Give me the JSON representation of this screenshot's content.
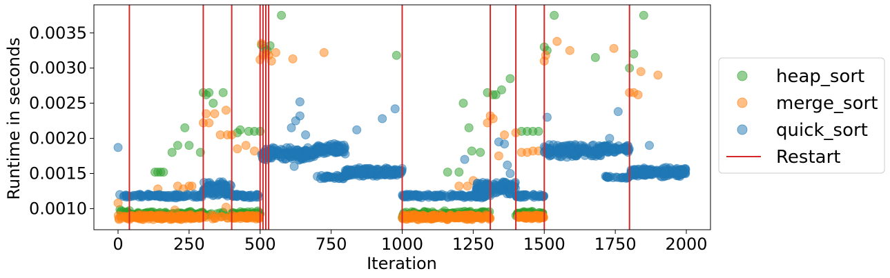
{
  "chart_data": {
    "type": "scatter",
    "xlabel": "Iteration",
    "ylabel": "Runtime in seconds",
    "xlim": [
      -85,
      2085
    ],
    "ylim": [
      0.0007,
      0.0039
    ],
    "xticks": [
      0,
      250,
      500,
      750,
      1000,
      1250,
      1500,
      1750,
      2000
    ],
    "xtick_labels": [
      "0",
      "250",
      "500",
      "750",
      "1000",
      "1250",
      "1500",
      "1750",
      "2000"
    ],
    "yticks": [
      0.001,
      0.0015,
      0.002,
      0.0025,
      0.003,
      0.0035
    ],
    "ytick_labels": [
      "0.0010",
      "0.0015",
      "0.0020",
      "0.0025",
      "0.0030",
      "0.0035"
    ],
    "grid": false,
    "legend_position": "outside-right",
    "restart_label": "Restart",
    "restart_color": "#d62728",
    "restarts": [
      40,
      300,
      400,
      500,
      510,
      520,
      530,
      1000,
      1310,
      1400,
      1500,
      1800
    ],
    "series": [
      {
        "name": "heap_sort",
        "color": "#2ca02c",
        "segments": [
          {
            "x": [
              0,
              40
            ],
            "base": 0.00095,
            "spread": 6e-05,
            "count": 10
          },
          {
            "x": [
              40,
              300
            ],
            "base": 0.00092,
            "spread": 5e-05,
            "count": 110
          },
          {
            "x": [
              300,
              400
            ],
            "base": 0.00093,
            "spread": 4e-05,
            "count": 10
          },
          {
            "x": [
              400,
              500
            ],
            "base": 0.00092,
            "spread": 5e-05,
            "count": 60
          },
          {
            "x": [
              1000,
              1310
            ],
            "base": 0.00092,
            "spread": 5e-05,
            "count": 130
          },
          {
            "x": [
              1400,
              1500
            ],
            "base": 0.00092,
            "spread": 5e-05,
            "count": 60
          }
        ],
        "outliers": [
          [
            130,
            0.00152
          ],
          [
            140,
            0.00152
          ],
          [
            150,
            0.00152
          ],
          [
            160,
            0.00152
          ],
          [
            190,
            0.0018
          ],
          [
            210,
            0.0019
          ],
          [
            235,
            0.00215
          ],
          [
            250,
            0.0019
          ],
          [
            290,
            0.0018
          ],
          [
            300,
            0.00265
          ],
          [
            310,
            0.00262
          ],
          [
            320,
            0.00265
          ],
          [
            335,
            0.0025
          ],
          [
            370,
            0.00265
          ],
          [
            420,
            0.00208
          ],
          [
            430,
            0.00212
          ],
          [
            460,
            0.0021
          ],
          [
            480,
            0.0021
          ],
          [
            500,
            0.0021
          ],
          [
            505,
            0.00333
          ],
          [
            515,
            0.00328
          ],
          [
            525,
            0.00325
          ],
          [
            535,
            0.00332
          ],
          [
            575,
            0.00375
          ],
          [
            980,
            0.00318
          ],
          [
            1160,
            0.00152
          ],
          [
            1200,
            0.00152
          ],
          [
            1215,
            0.0025
          ],
          [
            1235,
            0.00215
          ],
          [
            1245,
            0.00182
          ],
          [
            1275,
            0.0018
          ],
          [
            1300,
            0.00265
          ],
          [
            1320,
            0.00262
          ],
          [
            1330,
            0.00262
          ],
          [
            1350,
            0.00269
          ],
          [
            1380,
            0.00285
          ],
          [
            1420,
            0.0021
          ],
          [
            1440,
            0.0021
          ],
          [
            1460,
            0.0021
          ],
          [
            1480,
            0.0021
          ],
          [
            1500,
            0.0033
          ],
          [
            1510,
            0.00325
          ],
          [
            1535,
            0.00375
          ],
          [
            1680,
            0.00315
          ],
          [
            1800,
            0.003
          ],
          [
            1815,
            0.0032
          ],
          [
            1850,
            0.00375
          ]
        ]
      },
      {
        "name": "merge_sort",
        "color": "#ff7f0e",
        "segments": [
          {
            "x": [
              0,
              40
            ],
            "base": 0.00088,
            "spread": 4e-05,
            "count": 12
          },
          {
            "x": [
              40,
              300
            ],
            "base": 0.00088,
            "spread": 4e-05,
            "count": 160
          },
          {
            "x": [
              300,
              400
            ],
            "base": 0.00088,
            "spread": 3e-05,
            "count": 12
          },
          {
            "x": [
              400,
              500
            ],
            "base": 0.00088,
            "spread": 3e-05,
            "count": 60
          },
          {
            "x": [
              1000,
              1310
            ],
            "base": 0.00088,
            "spread": 4e-05,
            "count": 190
          },
          {
            "x": [
              1400,
              1500
            ],
            "base": 0.00088,
            "spread": 3e-05,
            "count": 60
          }
        ],
        "outliers": [
          [
            0,
            0.00108
          ],
          [
            140,
            0.00128
          ],
          [
            200,
            0.00098
          ],
          [
            210,
            0.00132
          ],
          [
            230,
            0.00128
          ],
          [
            250,
            0.00132
          ],
          [
            260,
            0.00132
          ],
          [
            300,
            0.00222
          ],
          [
            310,
            0.00235
          ],
          [
            320,
            0.00222
          ],
          [
            340,
            0.00235
          ],
          [
            360,
            0.00205
          ],
          [
            380,
            0.0024
          ],
          [
            385,
            0.00205
          ],
          [
            400,
            0.00205
          ],
          [
            380,
            0.00102
          ],
          [
            420,
            0.00185
          ],
          [
            450,
            0.0019
          ],
          [
            480,
            0.00182
          ],
          [
            500,
            0.00312
          ],
          [
            505,
            0.00335
          ],
          [
            510,
            0.00318
          ],
          [
            520,
            0.0032
          ],
          [
            530,
            0.00318
          ],
          [
            540,
            0.0031
          ],
          [
            555,
            0.00322
          ],
          [
            615,
            0.00313
          ],
          [
            725,
            0.00322
          ],
          [
            1200,
            0.00132
          ],
          [
            1230,
            0.00132
          ],
          [
            1250,
            0.0014
          ],
          [
            1270,
            0.00132
          ],
          [
            1300,
            0.00222
          ],
          [
            1310,
            0.00232
          ],
          [
            1320,
            0.00228
          ],
          [
            1340,
            0.00175
          ],
          [
            1360,
            0.00205
          ],
          [
            1400,
            0.00208
          ],
          [
            1420,
            0.0018
          ],
          [
            1440,
            0.0018
          ],
          [
            1460,
            0.00182
          ],
          [
            1480,
            0.00182
          ],
          [
            1500,
            0.0031
          ],
          [
            1505,
            0.00318
          ],
          [
            1545,
            0.00338
          ],
          [
            1590,
            0.00325
          ],
          [
            1745,
            0.00328
          ],
          [
            1800,
            0.00265
          ],
          [
            1815,
            0.00265
          ],
          [
            1830,
            0.00262
          ],
          [
            1840,
            0.00295
          ],
          [
            1900,
            0.0029
          ]
        ]
      },
      {
        "name": "quick_sort",
        "color": "#1f77b4",
        "segments": [
          {
            "x": [
              5,
              40
            ],
            "base": 0.00118,
            "spread": 3e-05,
            "count": 8
          },
          {
            "x": [
              40,
              300
            ],
            "base": 0.00118,
            "spread": 3e-05,
            "count": 90
          },
          {
            "x": [
              300,
              400
            ],
            "base": 0.00128,
            "spread": 0.00012,
            "count": 90
          },
          {
            "x": [
              400,
              500
            ],
            "base": 0.00118,
            "spread": 3e-05,
            "count": 40
          },
          {
            "x": [
              500,
              700
            ],
            "base": 0.00178,
            "spread": 0.0001,
            "count": 150
          },
          {
            "x": [
              700,
              800
            ],
            "base": 0.00185,
            "spread": 8e-05,
            "count": 80
          },
          {
            "x": [
              700,
              800
            ],
            "base": 0.00145,
            "spread": 3e-05,
            "count": 30
          },
          {
            "x": [
              800,
              1000
            ],
            "base": 0.00152,
            "spread": 7e-05,
            "count": 170
          },
          {
            "x": [
              1000,
              1310
            ],
            "base": 0.00118,
            "spread": 3e-05,
            "count": 110
          },
          {
            "x": [
              1260,
              1400
            ],
            "base": 0.0013,
            "spread": 0.00012,
            "count": 100
          },
          {
            "x": [
              1400,
              1500
            ],
            "base": 0.00118,
            "spread": 3e-05,
            "count": 40
          },
          {
            "x": [
              1500,
              1700
            ],
            "base": 0.00182,
            "spread": 0.0001,
            "count": 160
          },
          {
            "x": [
              1700,
              1800
            ],
            "base": 0.00185,
            "spread": 6e-05,
            "count": 70
          },
          {
            "x": [
              1700,
              1800
            ],
            "base": 0.00145,
            "spread": 2e-05,
            "count": 20
          },
          {
            "x": [
              1800,
              2000
            ],
            "base": 0.00152,
            "spread": 7e-05,
            "count": 170
          }
        ],
        "outliers": [
          [
            0,
            0.00187
          ],
          [
            610,
            0.00215
          ],
          [
            625,
            0.00225
          ],
          [
            640,
            0.00232
          ],
          [
            640,
            0.00252
          ],
          [
            660,
            0.00205
          ],
          [
            840,
            0.00212
          ],
          [
            930,
            0.00228
          ],
          [
            975,
            0.00242
          ],
          [
            620,
            0.0016
          ],
          [
            1220,
            0.0017
          ],
          [
            1340,
            0.00195
          ],
          [
            1360,
            0.00192
          ],
          [
            1370,
            0.00162
          ],
          [
            1380,
            0.0015
          ],
          [
            1510,
            0.0023
          ],
          [
            1760,
            0.00238
          ],
          [
            1730,
            0.002
          ],
          [
            1870,
            0.0019
          ]
        ]
      }
    ]
  }
}
